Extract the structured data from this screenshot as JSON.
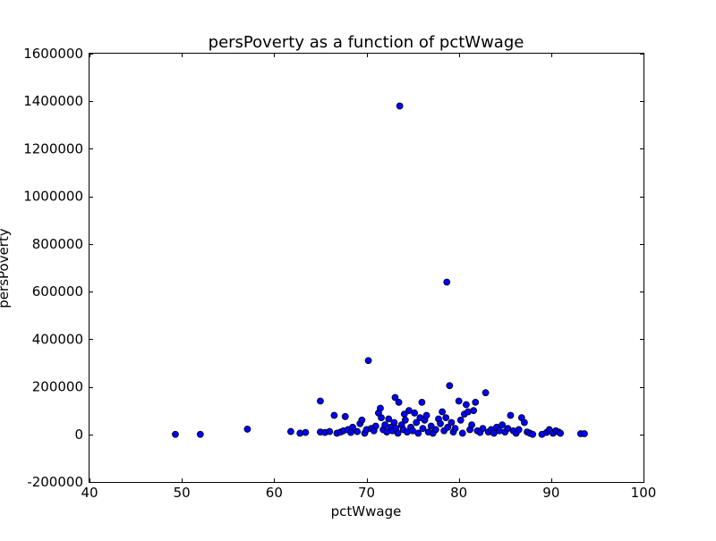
{
  "chart_data": {
    "type": "scatter",
    "title": "persPoverty as a function of pctWwage",
    "xlabel": "pctWwage",
    "ylabel": "persPoverty",
    "xlim": [
      40,
      100
    ],
    "ylim": [
      -200000,
      1600000
    ],
    "x_ticks": [
      40,
      50,
      60,
      70,
      80,
      90,
      100
    ],
    "y_ticks": [
      -200000,
      0,
      200000,
      400000,
      600000,
      800000,
      1000000,
      1200000,
      1400000,
      1600000
    ],
    "grid": false,
    "legend": "none",
    "marker_color": "#0000ff",
    "points": [
      {
        "x": 49.3,
        "y": 0
      },
      {
        "x": 52.0,
        "y": 0
      },
      {
        "x": 57.1,
        "y": 22000
      },
      {
        "x": 61.8,
        "y": 12000
      },
      {
        "x": 62.8,
        "y": 5000
      },
      {
        "x": 63.4,
        "y": 8000
      },
      {
        "x": 65.0,
        "y": 140000
      },
      {
        "x": 65.0,
        "y": 10000
      },
      {
        "x": 65.5,
        "y": 8000
      },
      {
        "x": 66.0,
        "y": 12000
      },
      {
        "x": 66.5,
        "y": 80000
      },
      {
        "x": 66.8,
        "y": 5000
      },
      {
        "x": 67.2,
        "y": 10000
      },
      {
        "x": 67.5,
        "y": 15000
      },
      {
        "x": 67.7,
        "y": 75000
      },
      {
        "x": 68.0,
        "y": 20000
      },
      {
        "x": 68.3,
        "y": 8000
      },
      {
        "x": 68.5,
        "y": 30000
      },
      {
        "x": 69.0,
        "y": 12000
      },
      {
        "x": 69.3,
        "y": 45000
      },
      {
        "x": 69.5,
        "y": 60000
      },
      {
        "x": 69.8,
        "y": 5000
      },
      {
        "x": 70.0,
        "y": 20000
      },
      {
        "x": 70.2,
        "y": 310000
      },
      {
        "x": 70.5,
        "y": 25000
      },
      {
        "x": 70.8,
        "y": 15000
      },
      {
        "x": 71.0,
        "y": 35000
      },
      {
        "x": 71.3,
        "y": 90000
      },
      {
        "x": 71.5,
        "y": 110000
      },
      {
        "x": 71.6,
        "y": 70000
      },
      {
        "x": 71.8,
        "y": 20000
      },
      {
        "x": 72.0,
        "y": 40000
      },
      {
        "x": 72.2,
        "y": 10000
      },
      {
        "x": 72.4,
        "y": 65000
      },
      {
        "x": 72.6,
        "y": 30000
      },
      {
        "x": 72.8,
        "y": 15000
      },
      {
        "x": 73.0,
        "y": 50000
      },
      {
        "x": 73.1,
        "y": 155000
      },
      {
        "x": 73.2,
        "y": 25000
      },
      {
        "x": 73.4,
        "y": 5000
      },
      {
        "x": 73.5,
        "y": 135000
      },
      {
        "x": 73.6,
        "y": 1380000
      },
      {
        "x": 73.8,
        "y": 40000
      },
      {
        "x": 74.0,
        "y": 20000
      },
      {
        "x": 74.1,
        "y": 85000
      },
      {
        "x": 74.2,
        "y": 60000
      },
      {
        "x": 74.4,
        "y": 10000
      },
      {
        "x": 74.6,
        "y": 100000
      },
      {
        "x": 74.8,
        "y": 30000
      },
      {
        "x": 75.0,
        "y": 15000
      },
      {
        "x": 75.2,
        "y": 90000
      },
      {
        "x": 75.4,
        "y": 50000
      },
      {
        "x": 75.6,
        "y": 5000
      },
      {
        "x": 75.8,
        "y": 70000
      },
      {
        "x": 76.0,
        "y": 135000
      },
      {
        "x": 76.1,
        "y": 25000
      },
      {
        "x": 76.3,
        "y": 60000
      },
      {
        "x": 76.5,
        "y": 80000
      },
      {
        "x": 76.7,
        "y": 10000
      },
      {
        "x": 77.0,
        "y": 35000
      },
      {
        "x": 77.2,
        "y": 5000
      },
      {
        "x": 77.5,
        "y": 20000
      },
      {
        "x": 77.8,
        "y": 65000
      },
      {
        "x": 78.0,
        "y": 45000
      },
      {
        "x": 78.2,
        "y": 95000
      },
      {
        "x": 78.4,
        "y": 15000
      },
      {
        "x": 78.6,
        "y": 70000
      },
      {
        "x": 78.7,
        "y": 640000
      },
      {
        "x": 78.8,
        "y": 30000
      },
      {
        "x": 79.0,
        "y": 205000
      },
      {
        "x": 79.2,
        "y": 50000
      },
      {
        "x": 79.4,
        "y": 10000
      },
      {
        "x": 79.6,
        "y": 25000
      },
      {
        "x": 80.0,
        "y": 140000
      },
      {
        "x": 80.2,
        "y": 60000
      },
      {
        "x": 80.4,
        "y": 5000
      },
      {
        "x": 80.6,
        "y": 85000
      },
      {
        "x": 80.8,
        "y": 125000
      },
      {
        "x": 81.0,
        "y": 95000
      },
      {
        "x": 81.2,
        "y": 20000
      },
      {
        "x": 81.4,
        "y": 40000
      },
      {
        "x": 81.6,
        "y": 100000
      },
      {
        "x": 81.8,
        "y": 135000
      },
      {
        "x": 82.0,
        "y": 15000
      },
      {
        "x": 82.3,
        "y": 8000
      },
      {
        "x": 82.6,
        "y": 25000
      },
      {
        "x": 82.9,
        "y": 175000
      },
      {
        "x": 83.2,
        "y": 10000
      },
      {
        "x": 83.5,
        "y": 20000
      },
      {
        "x": 83.8,
        "y": 5000
      },
      {
        "x": 84.1,
        "y": 30000
      },
      {
        "x": 84.4,
        "y": 15000
      },
      {
        "x": 84.7,
        "y": 40000
      },
      {
        "x": 85.0,
        "y": 10000
      },
      {
        "x": 85.3,
        "y": 25000
      },
      {
        "x": 85.6,
        "y": 80000
      },
      {
        "x": 85.9,
        "y": 15000
      },
      {
        "x": 86.2,
        "y": 5000
      },
      {
        "x": 86.5,
        "y": 20000
      },
      {
        "x": 86.8,
        "y": 70000
      },
      {
        "x": 87.1,
        "y": 50000
      },
      {
        "x": 87.4,
        "y": 10000
      },
      {
        "x": 87.7,
        "y": 5000
      },
      {
        "x": 88.0,
        "y": 0
      },
      {
        "x": 89.0,
        "y": 0
      },
      {
        "x": 89.5,
        "y": 8000
      },
      {
        "x": 89.8,
        "y": 20000
      },
      {
        "x": 90.2,
        "y": 5000
      },
      {
        "x": 90.5,
        "y": 15000
      },
      {
        "x": 90.8,
        "y": 10000
      },
      {
        "x": 91.0,
        "y": 5000
      },
      {
        "x": 93.2,
        "y": 3000
      },
      {
        "x": 93.6,
        "y": 3000
      }
    ]
  }
}
